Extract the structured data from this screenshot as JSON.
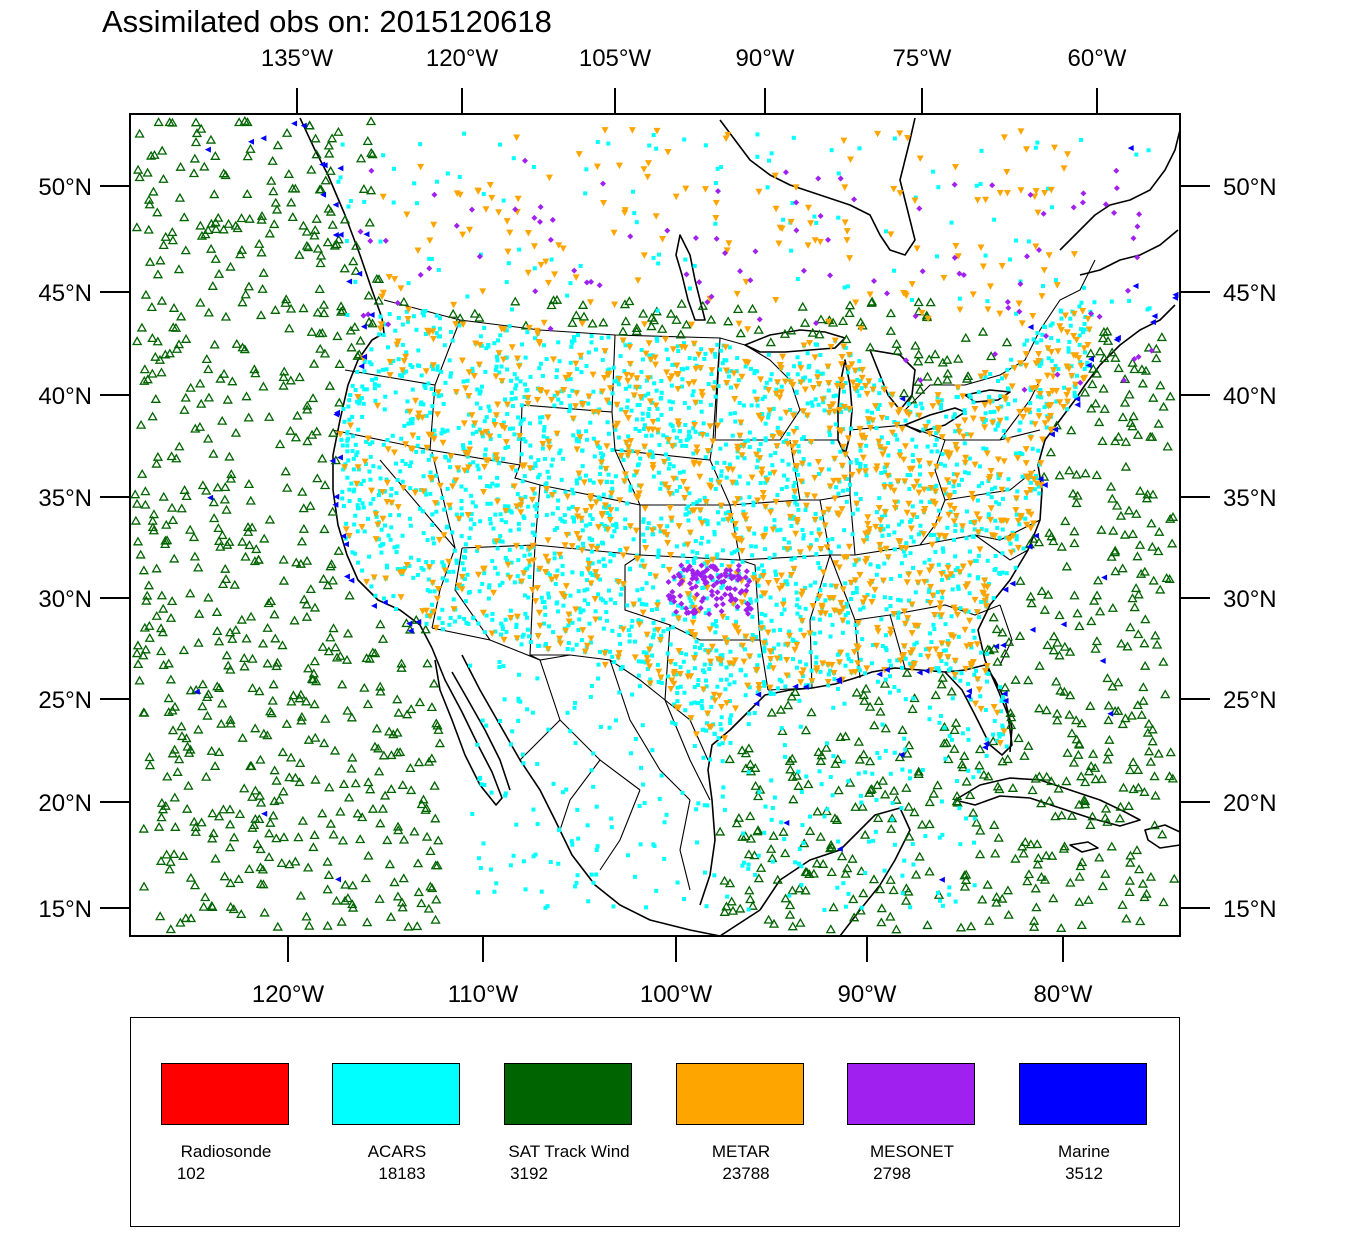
{
  "title": "Assimilated obs on: 2015120618",
  "axes": {
    "top_lon_labels": [
      "135°W",
      "120°W",
      "105°W",
      "90°W",
      "75°W",
      "60°W"
    ],
    "bottom_lon_labels": [
      "120°W",
      "110°W",
      "100°W",
      "90°W",
      "80°W"
    ],
    "lat_labels": [
      "50°N",
      "45°N",
      "40°N",
      "35°N",
      "30°N",
      "25°N",
      "20°N",
      "15°N"
    ]
  },
  "legend": {
    "items": [
      {
        "label": "Radiosonde",
        "count": "102",
        "color": "#ff0000"
      },
      {
        "label": "ACARS",
        "count": "18183",
        "color": "#00ffff"
      },
      {
        "label": "SAT Track Wind",
        "count": "3192",
        "color": "#006400"
      },
      {
        "label": "METAR",
        "count": "23788",
        "color": "#ffa500"
      },
      {
        "label": "MESONET",
        "count": "2798",
        "color": "#a020f0"
      },
      {
        "label": "Marine",
        "count": "3512",
        "color": "#0000ff"
      }
    ]
  },
  "map": {
    "projection": "lambert-conformal",
    "region": "North America / CONUS",
    "lon_range": [
      -128,
      -74
    ],
    "lat_range": [
      14,
      53
    ]
  }
}
